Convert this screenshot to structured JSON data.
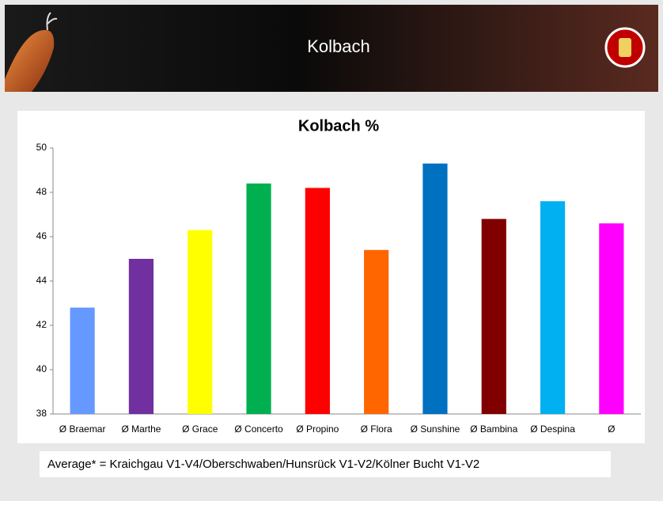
{
  "header": {
    "title": "Kolbach"
  },
  "chart_data": {
    "type": "bar",
    "title": "Kolbach  %",
    "categories": [
      "Ø Braemar",
      "Ø Marthe",
      "Ø Grace",
      "Ø Concerto",
      "Ø Propino",
      "Ø Flora",
      "Ø Sunshine",
      "Ø Bambina",
      "Ø Despina",
      "Ø"
    ],
    "values": [
      42.8,
      45.0,
      46.3,
      48.4,
      48.2,
      45.4,
      49.3,
      46.8,
      47.6,
      46.6
    ],
    "colors": [
      "#6699ff",
      "#7030a0",
      "#ffff00",
      "#00b050",
      "#ff0000",
      "#ff6600",
      "#0070c0",
      "#800000",
      "#00b0f0",
      "#ff00ff"
    ],
    "ylim": [
      38,
      50
    ],
    "yticks": [
      38,
      40,
      42,
      44,
      46,
      48,
      50
    ],
    "grid": false
  },
  "footnote": "Average* = Kraichgau V1-V4/Oberschwaben/Hunsrück V1-V2/Kölner Bucht V1-V2"
}
